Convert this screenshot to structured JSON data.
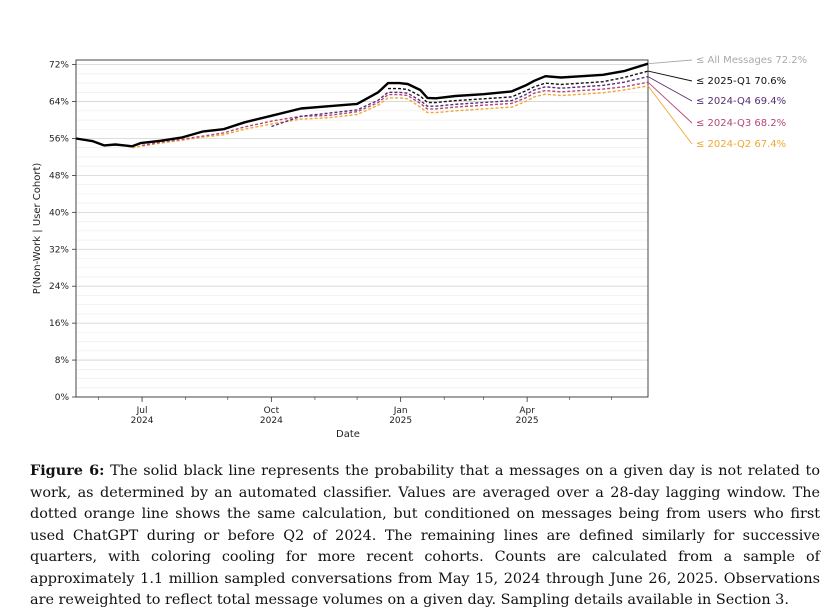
{
  "chart_data": {
    "type": "line",
    "title": "",
    "xlabel": "Date",
    "ylabel": "P(Non-Work | User Cohort)",
    "ylim": [
      0,
      73
    ],
    "yticks": [
      0,
      8,
      16,
      24,
      32,
      40,
      48,
      56,
      64,
      72
    ],
    "ytick_labels": [
      "0%",
      "8%",
      "16%",
      "24%",
      "32%",
      "40%",
      "48%",
      "56%",
      "64%",
      "72%"
    ],
    "xticks": [
      {
        "month": "Jul",
        "year": "2024",
        "day": 47
      },
      {
        "month": "Oct",
        "year": "2024",
        "day": 139
      },
      {
        "month": "Jan",
        "year": "2025",
        "day": 231
      },
      {
        "month": "Apr",
        "year": "2025",
        "day": 321
      }
    ],
    "x_range_days": [
      0,
      407
    ],
    "x_start_date": "2024-05-15",
    "series": [
      {
        "name": "All Messages",
        "final_label": "72.2%",
        "color": "#aaaaaa",
        "style": "solid",
        "days": [
          0,
          12,
          20,
          28,
          40,
          46,
          60,
          75,
          90,
          105,
          120,
          140,
          160,
          180,
          200,
          215,
          222,
          230,
          236,
          245,
          250,
          256,
          270,
          290,
          310,
          320,
          326,
          334,
          345,
          360,
          375,
          390,
          407
        ],
        "values": [
          56,
          55.4,
          54.5,
          54.7,
          54.3,
          55.0,
          55.5,
          56.2,
          57.5,
          58.0,
          59.5,
          61.0,
          62.5,
          63.0,
          63.5,
          66.0,
          68.0,
          68.0,
          67.8,
          66.5,
          64.8,
          64.7,
          65.2,
          65.6,
          66.2,
          67.5,
          68.5,
          69.5,
          69.2,
          69.5,
          69.8,
          70.6,
          72.2
        ]
      },
      {
        "name": "2025-Q1",
        "final_label": "70.6%",
        "color": "#111111",
        "style": "dashed",
        "days": [
          222,
          230,
          236,
          245,
          250,
          256,
          270,
          290,
          310,
          320,
          326,
          334,
          345,
          360,
          375,
          390,
          407
        ],
        "values": [
          66.8,
          66.8,
          66.6,
          65.2,
          63.8,
          63.8,
          64.2,
          64.6,
          65.0,
          66.3,
          67.2,
          68.0,
          67.7,
          68.0,
          68.3,
          69.2,
          70.6
        ]
      },
      {
        "name": "2024-Q4",
        "final_label": "69.4%",
        "color": "#5a2d73",
        "style": "dashed",
        "days": [
          139,
          160,
          180,
          200,
          215,
          222,
          230,
          236,
          245,
          250,
          256,
          270,
          290,
          310,
          320,
          326,
          334,
          345,
          360,
          375,
          390,
          407
        ],
        "values": [
          58.6,
          60.8,
          61.5,
          62.2,
          64.3,
          66.0,
          66.0,
          65.8,
          64.2,
          63.0,
          63.0,
          63.4,
          63.8,
          64.2,
          65.5,
          66.5,
          67.2,
          66.9,
          67.2,
          67.5,
          68.2,
          69.4
        ]
      },
      {
        "name": "2024-Q3",
        "final_label": "68.2%",
        "color": "#b5477a",
        "style": "dashed",
        "days": [
          47,
          60,
          75,
          90,
          105,
          120,
          140,
          160,
          180,
          200,
          215,
          222,
          230,
          236,
          245,
          250,
          256,
          270,
          290,
          310,
          320,
          326,
          334,
          345,
          360,
          375,
          390,
          407
        ],
        "values": [
          54.5,
          55.2,
          55.8,
          56.5,
          57.2,
          58.5,
          59.8,
          60.8,
          61.0,
          61.8,
          63.8,
          65.5,
          65.5,
          65.3,
          63.6,
          62.4,
          62.4,
          62.8,
          63.2,
          63.6,
          64.8,
          65.8,
          66.4,
          66.1,
          66.4,
          66.7,
          67.2,
          68.2
        ]
      },
      {
        "name": "2024-Q2",
        "final_label": "67.4%",
        "color": "#f0a830",
        "style": "dashed",
        "days": [
          40,
          46,
          60,
          75,
          90,
          105,
          120,
          140,
          160,
          180,
          200,
          215,
          222,
          230,
          236,
          245,
          250,
          256,
          270,
          290,
          310,
          320,
          326,
          334,
          345,
          360,
          375,
          390,
          407
        ],
        "values": [
          54.0,
          54.3,
          55.0,
          55.6,
          56.3,
          56.8,
          58.0,
          59.2,
          60.2,
          60.5,
          61.2,
          63.2,
          64.8,
          64.8,
          64.6,
          62.8,
          61.6,
          61.6,
          62.0,
          62.4,
          62.8,
          64.0,
          65.0,
          65.6,
          65.3,
          65.6,
          65.9,
          66.5,
          67.4
        ]
      }
    ]
  },
  "caption": {
    "label": "Figure 6:",
    "text": " The solid black line represents the probability that a messages on a given day is not related to work, as determined by an automated classifier. Values are averaged over a 28-day lagging window. The dotted orange line shows the same calculation, but conditioned on messages being from users who first used ChatGPT during or before Q2 of 2024. The remaining lines are defined similarly for successive quarters, with coloring cooling for more recent cohorts. Counts are calculated from a sample of approximately 1.1 million sampled conversations from May 15, 2024 through June 26, 2025. Observations are reweighted to reflect total message volumes on a given day. Sampling details available in Section 3."
  }
}
